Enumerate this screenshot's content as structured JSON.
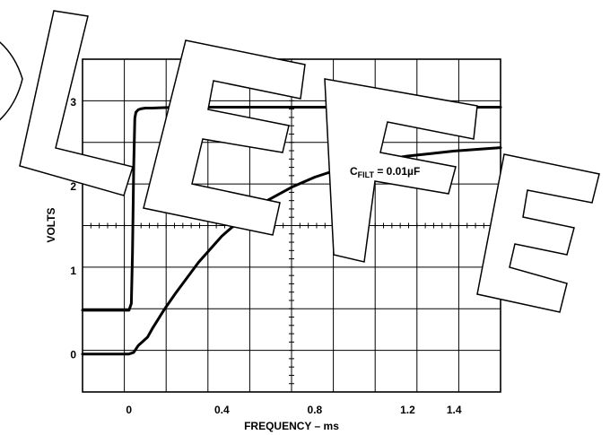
{
  "chart_data": {
    "type": "line",
    "title": "",
    "xlabel": "FREQUENCY – ms",
    "ylabel": "VOLTS",
    "xlim": [
      -0.2,
      1.6
    ],
    "ylim": [
      -0.45,
      3.5
    ],
    "xticks": [
      0,
      0.4,
      0.8,
      1.2,
      1.4
    ],
    "xtick_labels": [
      "0",
      "0.4",
      "0.8",
      "1.2",
      "1.4"
    ],
    "yticks": [
      0,
      1,
      2,
      3
    ],
    "ytick_labels": [
      "0",
      "1",
      "2",
      "3"
    ],
    "grid": true,
    "annotation": {
      "prefix": "C",
      "subscript": "FILT",
      "suffix": " = 0.01µF"
    },
    "watermark_text": "OBSOLETE",
    "series": [
      {
        "x": [
          -0.2,
          -0.05,
          0.0,
          0.01,
          0.015,
          0.02,
          0.025,
          0.03,
          0.04,
          0.05,
          0.07,
          0.1,
          0.2,
          0.4,
          0.8,
          1.2,
          1.6
        ],
        "y": [
          0.52,
          0.52,
          0.52,
          0.6,
          1.2,
          2.2,
          2.8,
          2.87,
          2.9,
          2.91,
          2.92,
          2.92,
          2.93,
          2.93,
          2.93,
          2.93,
          2.93
        ]
      },
      {
        "x": [
          -0.2,
          -0.1,
          0.0,
          0.02,
          0.04,
          0.06,
          0.08,
          0.1,
          0.15,
          0.2,
          0.3,
          0.4,
          0.5,
          0.6,
          0.7,
          0.8,
          0.9,
          1.0,
          1.1,
          1.2,
          1.3,
          1.4,
          1.5,
          1.6
        ],
        "y": [
          0.0,
          0.0,
          0.0,
          0.02,
          0.1,
          0.15,
          0.2,
          0.3,
          0.52,
          0.72,
          1.09,
          1.4,
          1.64,
          1.83,
          1.98,
          2.1,
          2.19,
          2.26,
          2.31,
          2.35,
          2.38,
          2.41,
          2.43,
          2.45
        ]
      }
    ]
  }
}
